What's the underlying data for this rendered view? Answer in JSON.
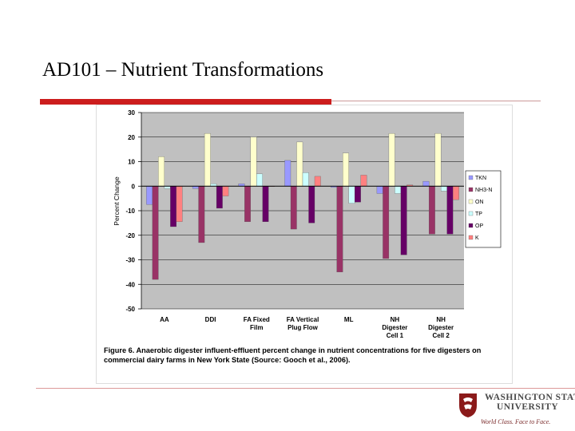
{
  "slide": {
    "title": "AD101 – Nutrient Transformations"
  },
  "figure": {
    "caption": "Figure 6.  Anaerobic digester influent-effluent percent change in nutrient concentrations for five digesters on commercial dairy farms in New York State (Source: Gooch et al., 2006)."
  },
  "logo": {
    "line1": "WASHINGTON STATE",
    "line2": "UNIVERSITY",
    "tagline": "World Class. Face to Face."
  },
  "colors": {
    "accent_red": "#cc1d1d",
    "plot_bg": "#c0c0c0",
    "logo_crimson": "#8b1a1a"
  },
  "chart_data": {
    "type": "bar",
    "title": "",
    "xlabel": "",
    "ylabel": "Percent Change",
    "ylim": [
      -50,
      30
    ],
    "yticks": [
      30,
      20,
      10,
      0,
      -10,
      -20,
      -30,
      -40,
      -50
    ],
    "grid": true,
    "legend_position": "right",
    "categories": [
      [
        "AA"
      ],
      [
        "DDI"
      ],
      [
        "FA Fixed",
        "Film"
      ],
      [
        "FA Vertical",
        "Plug Flow"
      ],
      [
        "ML"
      ],
      [
        "NH",
        "Digester",
        "Cell 1"
      ],
      [
        "NH",
        "Digester",
        "Cell 2"
      ]
    ],
    "series": [
      {
        "name": "TKN",
        "color": "#9999ff",
        "values": [
          -7.5,
          -1,
          1,
          10.5,
          -0.5,
          -3,
          2
        ]
      },
      {
        "name": "NH3-N",
        "color": "#993366",
        "values": [
          -38,
          -23,
          -14.5,
          -17.5,
          -35,
          -29.5,
          -19.5
        ]
      },
      {
        "name": "ON",
        "color": "#ffffcc",
        "values": [
          12,
          21.5,
          20,
          18,
          13.5,
          21.5,
          21.5
        ]
      },
      {
        "name": "TP",
        "color": "#ccffff",
        "values": [
          -1,
          1,
          5,
          5.5,
          -7,
          -3,
          -2
        ]
      },
      {
        "name": "OP",
        "color": "#660066",
        "values": [
          -16.5,
          -9,
          -14.5,
          -15,
          -6.5,
          -28,
          -19.5
        ]
      },
      {
        "name": "K",
        "color": "#ff8080",
        "values": [
          -14.5,
          -4,
          0,
          4,
          4.5,
          0.5,
          -5.5
        ]
      }
    ]
  }
}
